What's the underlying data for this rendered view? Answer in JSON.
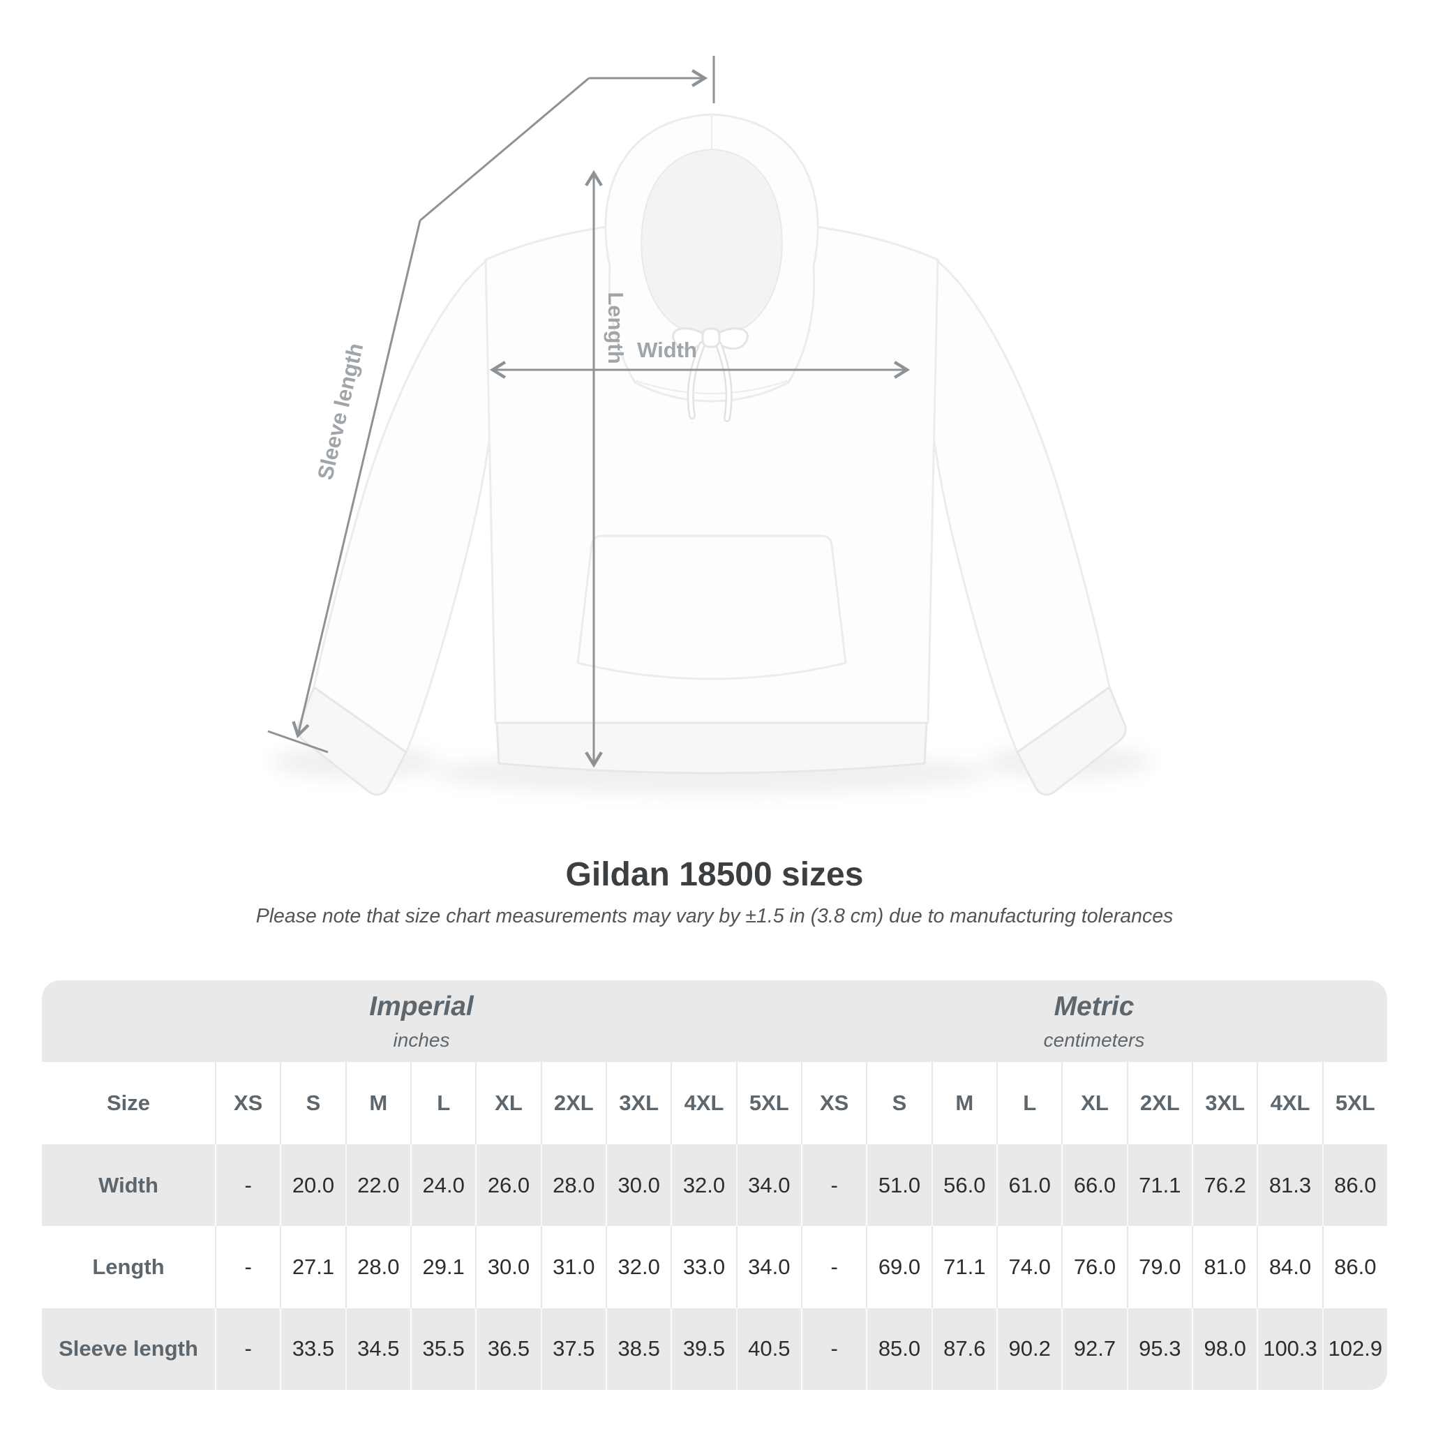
{
  "title": "Gildan 18500 sizes",
  "subtitle": "Please note that size chart measurements may vary by ±1.5 in (3.8 cm) due to manufacturing tolerances",
  "diagram": {
    "width_label": "Width",
    "length_label": "Length",
    "sleeve_label": "Sleeve length"
  },
  "table": {
    "size_header": "Size",
    "groups": [
      {
        "name": "Imperial",
        "unit": "inches"
      },
      {
        "name": "Metric",
        "unit": "centimeters"
      }
    ],
    "sizes": [
      "XS",
      "S",
      "M",
      "L",
      "XL",
      "2XL",
      "3XL",
      "4XL",
      "5XL"
    ],
    "rows": [
      {
        "label": "Width",
        "imperial": [
          "-",
          "20.0",
          "22.0",
          "24.0",
          "26.0",
          "28.0",
          "30.0",
          "32.0",
          "34.0"
        ],
        "metric": [
          "-",
          "51.0",
          "56.0",
          "61.0",
          "66.0",
          "71.1",
          "76.2",
          "81.3",
          "86.0"
        ]
      },
      {
        "label": "Length",
        "imperial": [
          "-",
          "27.1",
          "28.0",
          "29.1",
          "30.0",
          "31.0",
          "32.0",
          "33.0",
          "34.0"
        ],
        "metric": [
          "-",
          "69.0",
          "71.1",
          "74.0",
          "76.0",
          "79.0",
          "81.0",
          "84.0",
          "86.0"
        ]
      },
      {
        "label": "Sleeve length",
        "imperial": [
          "-",
          "33.5",
          "34.5",
          "35.5",
          "36.5",
          "37.5",
          "38.5",
          "39.5",
          "40.5"
        ],
        "metric": [
          "-",
          "85.0",
          "87.6",
          "90.2",
          "92.7",
          "95.3",
          "98.0",
          "100.3",
          "102.9"
        ]
      }
    ]
  },
  "chart_data": {
    "type": "table",
    "title": "Gildan 18500 sizes",
    "row_headers": [
      "Width",
      "Length",
      "Sleeve length"
    ],
    "column_groups": [
      "Imperial (inches)",
      "Metric (centimeters)"
    ],
    "columns": [
      "XS",
      "S",
      "M",
      "L",
      "XL",
      "2XL",
      "3XL",
      "4XL",
      "5XL"
    ],
    "imperial_values": [
      [
        null,
        20.0,
        22.0,
        24.0,
        26.0,
        28.0,
        30.0,
        32.0,
        34.0
      ],
      [
        null,
        27.1,
        28.0,
        29.1,
        30.0,
        31.0,
        32.0,
        33.0,
        34.0
      ],
      [
        null,
        33.5,
        34.5,
        35.5,
        36.5,
        37.5,
        38.5,
        39.5,
        40.5
      ]
    ],
    "metric_values": [
      [
        null,
        51.0,
        56.0,
        61.0,
        66.0,
        71.1,
        76.2,
        81.3,
        86.0
      ],
      [
        null,
        69.0,
        71.1,
        74.0,
        76.0,
        79.0,
        81.0,
        84.0,
        86.0
      ],
      [
        null,
        85.0,
        87.6,
        90.2,
        92.7,
        95.3,
        98.0,
        100.3,
        102.9
      ]
    ]
  },
  "colors": {
    "band": "#e9e9e9",
    "header_text": "#5d666d",
    "value_text": "#2d2d2d",
    "annotation_line": "#8d9296",
    "annotation_label": "#a0a5a9",
    "title_text": "#3c3f42",
    "subtitle_text": "#545454"
  }
}
